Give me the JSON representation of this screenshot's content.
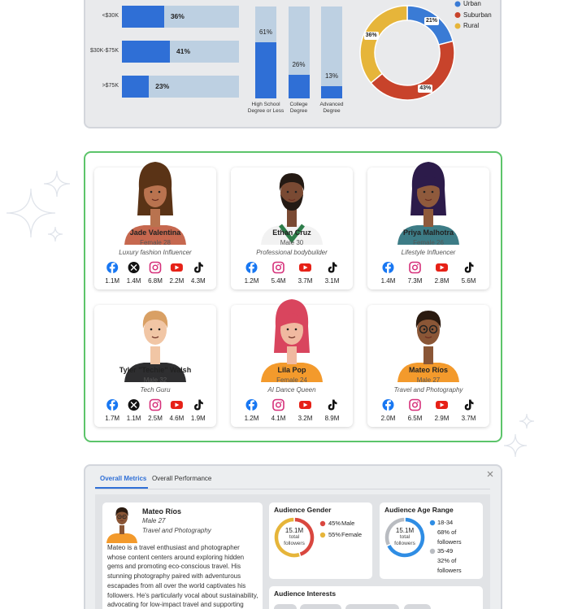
{
  "income_chart": {
    "type": "bar",
    "orientation": "horizontal",
    "categories": [
      "<$30K",
      "$30K-$75K",
      ">$75K"
    ],
    "values": [
      36,
      41,
      23
    ],
    "value_labels": [
      "36%",
      "41%",
      "23%"
    ],
    "xlim": [
      0,
      100
    ],
    "color": "#2f6fd6",
    "track_color": "#bdd0e2"
  },
  "education_chart": {
    "type": "bar",
    "categories": [
      "High School Degree or Less",
      "College Degree",
      "Advanced Degree"
    ],
    "values": [
      61,
      26,
      13
    ],
    "value_labels": [
      "61%",
      "26%",
      "13%"
    ],
    "ylim": [
      0,
      100
    ],
    "color": "#2f6fd6",
    "track_color": "#bdd0e2"
  },
  "location_chart": {
    "type": "pie",
    "categories": [
      "Urban",
      "Suburban",
      "Rural"
    ],
    "values": [
      21,
      43,
      36
    ],
    "value_labels": [
      "21%",
      "43%",
      "36%"
    ],
    "colors": [
      "#3a7bd5",
      "#c8432b",
      "#e6b53a"
    ]
  },
  "influencers": [
    {
      "name": "Jade Valentina",
      "gender_age": "Female 28",
      "role": "Luxury fashion Influencer",
      "socials": {
        "facebook": "1.1M",
        "x": "1.4M",
        "instagram": "6.8M",
        "youtube": "2.2M",
        "tiktok": "4.3M"
      }
    },
    {
      "name": "Ethan Cruz",
      "gender_age": "Male 30",
      "role": "Professional bodybuilder",
      "socials": {
        "facebook": "1.2M",
        "instagram": "5.4M",
        "youtube": "3.7M",
        "tiktok": "3.1M"
      }
    },
    {
      "name": "Priya Malhotra",
      "gender_age": "Female 26",
      "role": "Lifestyle Influencer",
      "socials": {
        "facebook": "1.4M",
        "instagram": "7.3M",
        "youtube": "2.8M",
        "tiktok": "5.6M"
      }
    },
    {
      "name": "Tyler \"Techie\" Walsh",
      "gender_age": "Male 32",
      "role": "Tech Guru",
      "socials": {
        "facebook": "1.7M",
        "x": "1.1M",
        "instagram": "2.5M",
        "youtube": "4.6M",
        "tiktok": "1.9M"
      }
    },
    {
      "name": "Lila Pop",
      "gender_age": "Female 24",
      "role": "AI Dance Queen",
      "socials": {
        "facebook": "1.2M",
        "instagram": "4.1M",
        "youtube": "3.2M",
        "tiktok": "8.9M"
      }
    },
    {
      "name": "Mateo Ríos",
      "gender_age": "Male 27",
      "role": "Travel and Photography",
      "socials": {
        "facebook": "2.0M",
        "instagram": "6.5M",
        "youtube": "2.9M",
        "tiktok": "3.7M"
      }
    }
  ],
  "detail": {
    "tabs": [
      "Overall Metrics",
      "Overall Performance"
    ],
    "profile": {
      "name": "Mateo Ríos",
      "gender_age": "Male 27",
      "role": "Travel and Photography",
      "bio": "Mateo is a travel enthusiast and photographer whose content centers around exploring hidden gems and promoting eco-conscious travel. His stunning photography paired with adventurous escapades from all over the world captivates his followers. He's particularly vocal about sustainability, advocating for low-impact travel and supporting conservation"
    },
    "gender": {
      "type": "pie",
      "title": "Audience Gender",
      "categories": [
        "Male",
        "Female"
      ],
      "values": [
        45,
        55
      ],
      "value_labels": [
        "45%",
        "55%"
      ],
      "colors": [
        "#d9473f",
        "#e6b53a"
      ],
      "total": "15.1M",
      "total_caption": "total followers"
    },
    "age": {
      "type": "pie",
      "title": "Audience Age Range",
      "categories": [
        "18-34",
        "35-49"
      ],
      "values": [
        68,
        32
      ],
      "value_labels": [
        "68% of followers",
        "32% of followers"
      ],
      "colors": [
        "#2f8de4",
        "#b9bcc1"
      ],
      "total": "15.1M",
      "total_caption": "total followers"
    },
    "interests": {
      "title": "Audience Interests"
    }
  }
}
